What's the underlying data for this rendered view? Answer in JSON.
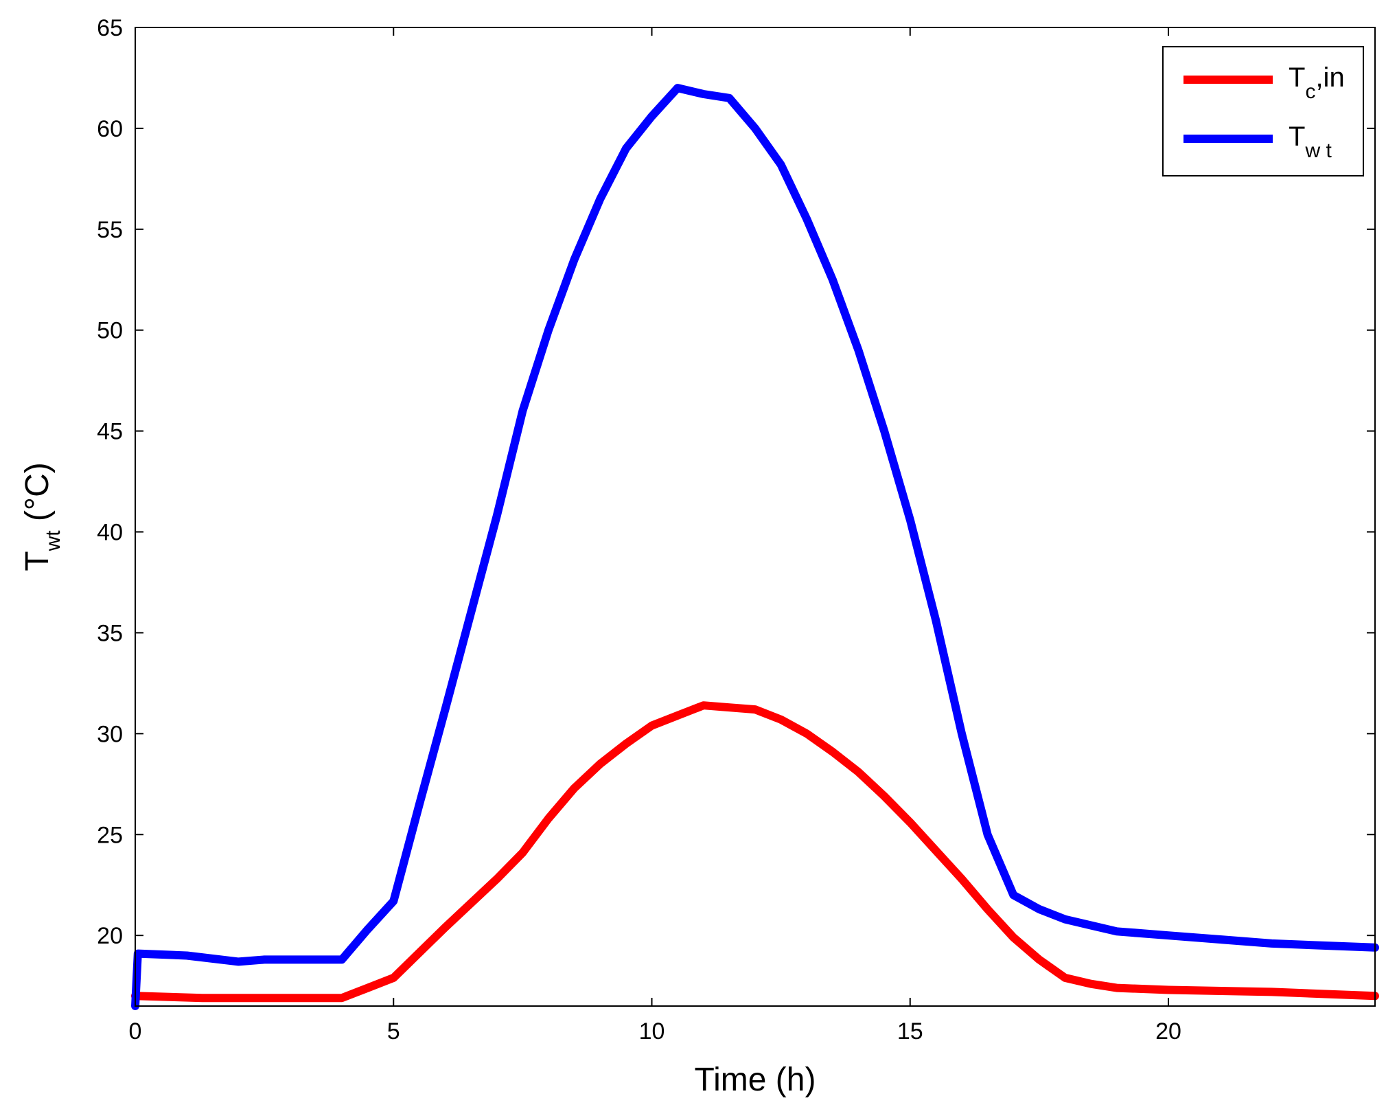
{
  "chart_data": {
    "type": "line",
    "title": "",
    "xlabel": "Time (h)",
    "ylabel": {
      "main": "T",
      "sub": "wt",
      "unit": " (°C)"
    },
    "xlim": [
      0,
      24
    ],
    "ylim": [
      16.5,
      65
    ],
    "xticks": [
      0,
      5,
      10,
      15,
      20
    ],
    "yticks": [
      20,
      25,
      30,
      35,
      40,
      45,
      50,
      55,
      60,
      65
    ],
    "grid": false,
    "legend_position": "top-right",
    "series": [
      {
        "name": "T_c,in",
        "legend_main": "T",
        "legend_sub": "c",
        "legend_rest": ",in",
        "color": "#ff0000",
        "x": [
          0,
          1.3,
          4,
          4.5,
          5,
          6,
          7,
          7.5,
          8,
          8.5,
          9,
          9.5,
          10,
          10.5,
          11,
          11.5,
          12,
          12.5,
          13,
          13.5,
          14,
          14.5,
          15,
          15.5,
          16,
          16.5,
          17,
          17.5,
          18,
          18.5,
          19,
          20,
          22,
          24
        ],
        "y": [
          17.0,
          16.9,
          16.9,
          17.4,
          17.9,
          20.4,
          22.8,
          24.1,
          25.8,
          27.3,
          28.5,
          29.5,
          30.4,
          30.9,
          31.4,
          31.3,
          31.2,
          30.7,
          30.0,
          29.1,
          28.1,
          26.9,
          25.6,
          24.2,
          22.8,
          21.3,
          19.9,
          18.8,
          17.9,
          17.6,
          17.4,
          17.3,
          17.2,
          17.0
        ]
      },
      {
        "name": "T_wt",
        "legend_main": "T",
        "legend_sub": "w t",
        "legend_rest": "",
        "color": "#0000ff",
        "x": [
          0,
          0.05,
          1,
          2,
          2.5,
          4,
          4.5,
          5,
          5.5,
          6,
          6.5,
          7,
          7.5,
          8,
          8.5,
          9,
          9.5,
          10,
          10.5,
          11,
          11.5,
          12,
          12.5,
          13,
          13.5,
          14,
          14.5,
          15,
          15.5,
          16,
          16.5,
          17,
          17.5,
          18,
          18.5,
          19,
          20,
          21,
          22,
          23,
          24
        ],
        "y": [
          16.5,
          19.1,
          19.0,
          18.7,
          18.8,
          18.8,
          20.3,
          21.7,
          26.5,
          31.2,
          36.0,
          40.8,
          46.0,
          50.0,
          53.5,
          56.5,
          59.0,
          60.6,
          62.0,
          61.7,
          61.5,
          60.0,
          58.2,
          55.5,
          52.5,
          49.0,
          45.0,
          40.6,
          35.6,
          30.0,
          25.0,
          22.0,
          21.3,
          20.8,
          20.5,
          20.2,
          20.0,
          19.8,
          19.6,
          19.5,
          19.4
        ]
      }
    ]
  }
}
